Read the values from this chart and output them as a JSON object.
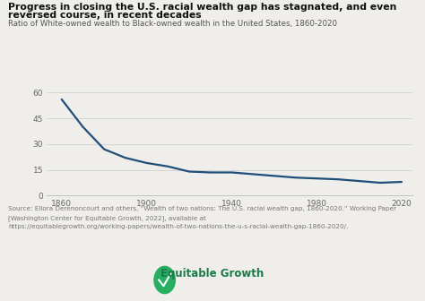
{
  "title_line1": "Progress in closing the U.S. racial wealth gap has stagnated, and even",
  "title_line2": "reversed course, in recent decades",
  "subtitle": "Ratio of White-owned wealth to Black-owned wealth in the United States, 1860-2020",
  "source_line1": "Source: Ellora Derenoncourt and others, “Wealth of two nations: The U.S. racial wealth gap, 1860-2020.” Working Paper",
  "source_line2": "[Washington Center for Equitable Growth, 2022], available at",
  "source_line3": "https://equitablegrowth.org/working-papers/wealth-of-two-nations-the-u-s-racial-wealth-gap-1860-2020/.",
  "brand_text": "Equitable Growth",
  "x_data": [
    1860,
    1870,
    1880,
    1890,
    1900,
    1910,
    1920,
    1930,
    1940,
    1950,
    1960,
    1970,
    1980,
    1990,
    2000,
    2010,
    2020
  ],
  "y_data": [
    56,
    40,
    27,
    22,
    19,
    17,
    14,
    13.5,
    13.5,
    12.5,
    11.5,
    10.5,
    10,
    9.5,
    8.5,
    7.5,
    8
  ],
  "line_color": "#1f4e79",
  "bg_color": "#f0eeeb",
  "title_color": "#111111",
  "subtitle_color": "#555555",
  "source_color": "#777777",
  "brand_color": "#1a7a4a",
  "yticks": [
    0,
    15,
    30,
    45,
    60
  ],
  "xticks": [
    1860,
    1900,
    1940,
    1980,
    2020
  ],
  "ylim": [
    0,
    63
  ],
  "xlim": [
    1853,
    2025
  ]
}
